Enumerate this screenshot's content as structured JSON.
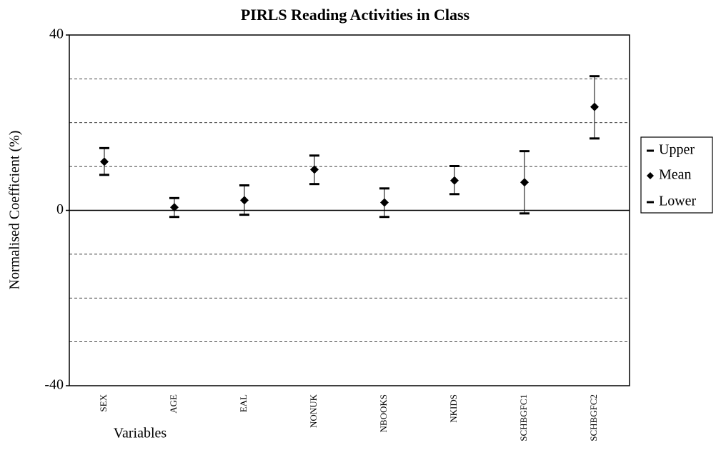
{
  "chart_data": {
    "type": "errorbar",
    "title": "PIRLS Reading Activities in Class",
    "x_label": "Variables",
    "y_label": "Normalised Coefficient (%)",
    "categories": [
      "SEX",
      "AGE",
      "EAL",
      "NONUK",
      "NBOOKS",
      "NKIDS",
      "SCHBGFC1",
      "SCHBGFC2"
    ],
    "series": [
      {
        "name": "Upper",
        "color": "#000000",
        "values": [
          14.2,
          2.8,
          5.7,
          12.5,
          5.0,
          10.1,
          13.5,
          30.6
        ]
      },
      {
        "name": "Mean",
        "color": "#000000",
        "values": [
          11.1,
          0.7,
          2.3,
          9.3,
          1.8,
          6.8,
          6.4,
          23.6
        ]
      },
      {
        "name": "Lower",
        "color": "#000000",
        "values": [
          8.1,
          -1.5,
          -1.0,
          6.0,
          -1.5,
          3.7,
          -0.7,
          16.4
        ]
      }
    ],
    "ylim": [
      -40,
      40
    ],
    "yticks": [
      -40,
      0,
      40
    ],
    "yticks_minor": [
      -30,
      -20,
      -10,
      10,
      20,
      30
    ],
    "grid": true,
    "legend": "right"
  }
}
